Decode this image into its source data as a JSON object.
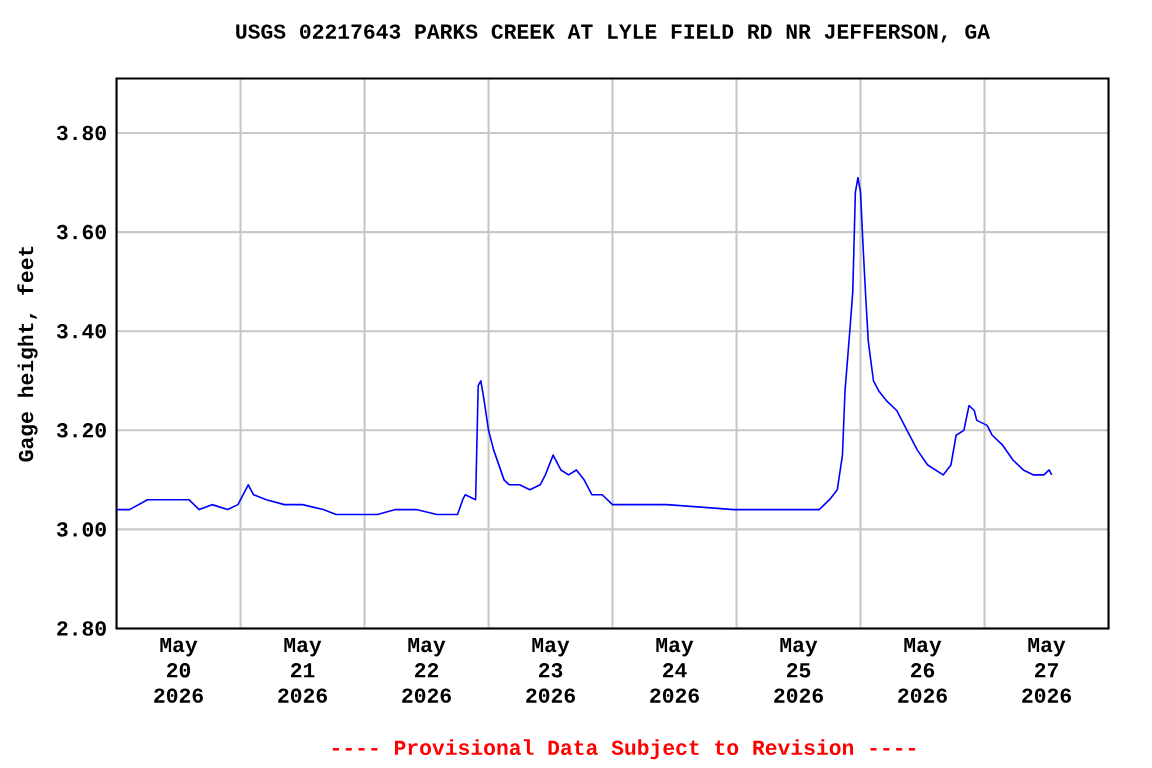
{
  "chart_data": {
    "type": "line",
    "title": "USGS 02217643 PARKS CREEK AT LYLE FIELD RD NR JEFFERSON, GA",
    "ylabel": "Gage height, feet",
    "annotations": [
      "---- Provisional Data Subject to Revision ----"
    ],
    "color": "#0000ff",
    "grid": true,
    "xlim": [
      "2026-05-20T00:00",
      "2026-05-28T00:00"
    ],
    "ylim": [
      2.8,
      3.91
    ],
    "yticks": [
      {
        "value": 2.8,
        "label": "2.80"
      },
      {
        "value": 3.0,
        "label": "3.00"
      },
      {
        "value": 3.2,
        "label": "3.20"
      },
      {
        "value": 3.4,
        "label": "3.40"
      },
      {
        "value": 3.6,
        "label": "3.60"
      },
      {
        "value": 3.8,
        "label": "3.80"
      }
    ],
    "xticks": [
      {
        "value": "2026-05-21T00:00",
        "label": null
      },
      {
        "value": "2026-05-22T00:00",
        "label": null
      },
      {
        "value": "2026-05-23T00:00",
        "label": null
      },
      {
        "value": "2026-05-24T00:00",
        "label": null
      },
      {
        "value": "2026-05-25T00:00",
        "label": null
      },
      {
        "value": "2026-05-26T00:00",
        "label": null
      },
      {
        "value": "2026-05-27T00:00",
        "label": null
      },
      {
        "value": "2026-05-20T12:00",
        "label": "May 20 2026"
      },
      {
        "value": "2026-05-21T12:00",
        "label": "May 21 2026"
      },
      {
        "value": "2026-05-22T12:00",
        "label": "May 22 2026"
      },
      {
        "value": "2026-05-23T12:00",
        "label": "May 23 2026"
      },
      {
        "value": "2026-05-24T12:00",
        "label": "May 24 2026"
      },
      {
        "value": "2026-05-25T12:00",
        "label": "May 25 2026"
      },
      {
        "value": "2026-05-26T12:00",
        "label": "May 26 2026"
      },
      {
        "value": "2026-05-27T12:00",
        "label": "May 27 2026"
      }
    ],
    "x": [
      "2026-05-20T00:00",
      "2026-05-20T02:30",
      "2026-05-20T06:00",
      "2026-05-20T09:00",
      "2026-05-20T11:30",
      "2026-05-20T14:00",
      "2026-05-20T16:00",
      "2026-05-20T18:30",
      "2026-05-20T21:30",
      "2026-05-20T23:30",
      "2026-05-21T01:30",
      "2026-05-21T02:30",
      "2026-05-21T05:00",
      "2026-05-21T08:30",
      "2026-05-21T12:00",
      "2026-05-21T16:00",
      "2026-05-21T18:30",
      "2026-05-21T22:30",
      "2026-05-22T02:30",
      "2026-05-22T06:00",
      "2026-05-22T10:00",
      "2026-05-22T14:00",
      "2026-05-22T18:00",
      "2026-05-22T19:00",
      "2026-05-22T19:30",
      "2026-05-22T21:30",
      "2026-05-22T22:00",
      "2026-05-22T22:30",
      "2026-05-22T23:00",
      "2026-05-23T00:00",
      "2026-05-23T01:00",
      "2026-05-23T02:00",
      "2026-05-23T03:00",
      "2026-05-23T04:00",
      "2026-05-23T06:00",
      "2026-05-23T08:00",
      "2026-05-23T10:00",
      "2026-05-23T11:00",
      "2026-05-23T12:30",
      "2026-05-23T14:00",
      "2026-05-23T15:30",
      "2026-05-23T17:00",
      "2026-05-23T18:30",
      "2026-05-23T20:00",
      "2026-05-23T22:00",
      "2026-05-24T00:00",
      "2026-05-24T02:30",
      "2026-05-24T10:30",
      "2026-05-24T23:30",
      "2026-05-25T09:30",
      "2026-05-25T16:00",
      "2026-05-25T18:00",
      "2026-05-25T19:30",
      "2026-05-25T20:30",
      "2026-05-25T21:00",
      "2026-05-25T22:00",
      "2026-05-25T22:30",
      "2026-05-25T23:00",
      "2026-05-25T23:30",
      "2026-05-26T00:00",
      "2026-05-26T00:30",
      "2026-05-26T01:00",
      "2026-05-26T01:30",
      "2026-05-26T02:30",
      "2026-05-26T03:30",
      "2026-05-26T05:00",
      "2026-05-26T07:00",
      "2026-05-26T09:00",
      "2026-05-26T11:00",
      "2026-05-26T13:00",
      "2026-05-26T14:30",
      "2026-05-26T16:00",
      "2026-05-26T17:30",
      "2026-05-26T18:30",
      "2026-05-26T20:00",
      "2026-05-26T21:00",
      "2026-05-26T22:00",
      "2026-05-26T22:30",
      "2026-05-27T00:30",
      "2026-05-27T01:30",
      "2026-05-27T03:30",
      "2026-05-27T05:30",
      "2026-05-27T07:30",
      "2026-05-27T09:30",
      "2026-05-27T11:30",
      "2026-05-27T12:30",
      "2026-05-27T13:00"
    ],
    "values": [
      3.04,
      3.04,
      3.06,
      3.06,
      3.06,
      3.06,
      3.04,
      3.05,
      3.04,
      3.05,
      3.09,
      3.07,
      3.06,
      3.05,
      3.05,
      3.04,
      3.03,
      3.03,
      3.03,
      3.04,
      3.04,
      3.03,
      3.03,
      3.06,
      3.07,
      3.06,
      3.29,
      3.3,
      3.27,
      3.2,
      3.16,
      3.13,
      3.1,
      3.09,
      3.09,
      3.08,
      3.09,
      3.11,
      3.15,
      3.12,
      3.11,
      3.12,
      3.1,
      3.07,
      3.07,
      3.05,
      3.05,
      3.05,
      3.04,
      3.04,
      3.04,
      3.06,
      3.08,
      3.15,
      3.28,
      3.41,
      3.48,
      3.68,
      3.71,
      3.68,
      3.57,
      3.47,
      3.38,
      3.3,
      3.28,
      3.26,
      3.24,
      3.2,
      3.16,
      3.13,
      3.12,
      3.11,
      3.13,
      3.19,
      3.2,
      3.25,
      3.24,
      3.22,
      3.21,
      3.19,
      3.17,
      3.14,
      3.12,
      3.11,
      3.11,
      3.12,
      3.11
    ]
  }
}
